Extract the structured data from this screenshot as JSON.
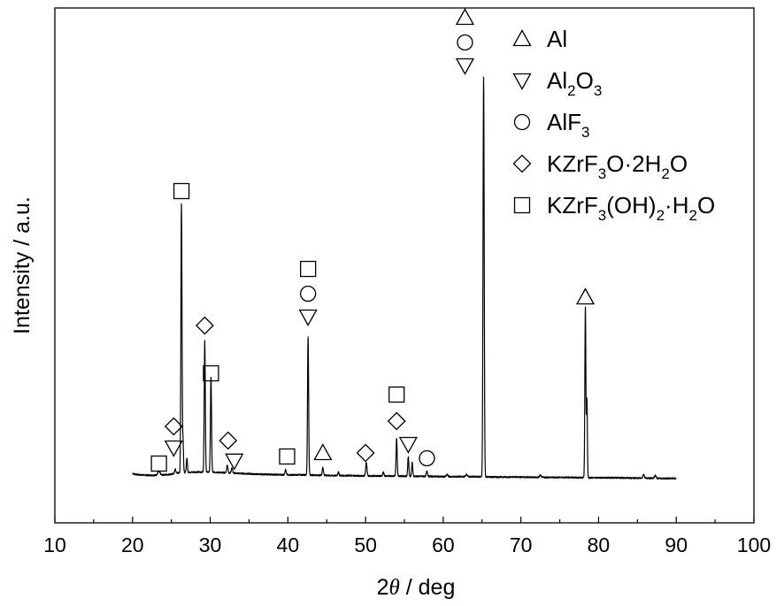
{
  "chart_data": {
    "type": "line",
    "xlabel": {
      "prefix": "2",
      "symbol": "θ",
      "suffix": " / deg"
    },
    "ylabel": "Intensity / a.u.",
    "xlim": [
      10,
      100
    ],
    "x_ticks": [
      10,
      20,
      30,
      40,
      50,
      60,
      70,
      80,
      90,
      100
    ],
    "x_minor_step": 5,
    "ylim": [
      0,
      1200
    ],
    "y_ticks_shown": false,
    "grid": false,
    "legend_position": "top-right",
    "legend": [
      {
        "shape": "triangle-up",
        "parts": [
          {
            "t": "Al"
          }
        ]
      },
      {
        "shape": "triangle-down",
        "parts": [
          {
            "t": "Al"
          },
          {
            "t": "2",
            "sub": true
          },
          {
            "t": "O"
          },
          {
            "t": "3",
            "sub": true
          }
        ]
      },
      {
        "shape": "circle",
        "parts": [
          {
            "t": "AlF"
          },
          {
            "t": "3",
            "sub": true
          }
        ]
      },
      {
        "shape": "diamond",
        "parts": [
          {
            "t": "KZrF"
          },
          {
            "t": "3",
            "sub": true
          },
          {
            "t": "O·2H"
          },
          {
            "t": "2",
            "sub": true
          },
          {
            "t": "O"
          }
        ]
      },
      {
        "shape": "square",
        "parts": [
          {
            "t": "KZrF"
          },
          {
            "t": "3",
            "sub": true
          },
          {
            "t": "(OH)"
          },
          {
            "t": "2",
            "sub": true
          },
          {
            "t": "·H"
          },
          {
            "t": "2",
            "sub": true
          },
          {
            "t": "O"
          }
        ]
      }
    ],
    "baseline": [
      [
        20,
        32
      ],
      [
        20.5,
        29
      ],
      [
        21,
        28
      ],
      [
        22,
        27
      ],
      [
        23,
        27
      ],
      [
        24,
        28
      ],
      [
        25,
        30
      ],
      [
        26,
        34
      ],
      [
        28,
        36
      ],
      [
        30,
        36
      ],
      [
        32,
        34
      ],
      [
        34,
        32
      ],
      [
        36,
        30
      ],
      [
        38,
        29
      ],
      [
        40,
        28
      ],
      [
        42,
        28
      ],
      [
        44,
        27
      ],
      [
        46,
        26
      ],
      [
        48,
        26
      ],
      [
        50,
        25
      ],
      [
        52,
        25
      ],
      [
        54,
        25
      ],
      [
        56,
        24
      ],
      [
        58,
        24
      ],
      [
        60,
        23
      ],
      [
        62,
        23
      ],
      [
        64,
        23
      ],
      [
        66,
        22
      ],
      [
        68,
        22
      ],
      [
        70,
        22
      ],
      [
        72,
        21
      ],
      [
        74,
        21
      ],
      [
        76,
        21
      ],
      [
        78,
        20
      ],
      [
        80,
        20
      ],
      [
        82,
        20
      ],
      [
        84,
        19
      ],
      [
        86,
        19
      ],
      [
        88,
        18
      ],
      [
        90,
        18
      ]
    ],
    "peaks": [
      {
        "x": 23.4,
        "h": 10,
        "w": 0.15
      },
      {
        "x": 25.5,
        "h": 12,
        "w": 0.08
      },
      {
        "x": 26.3,
        "h": 760,
        "w": 0.07
      },
      {
        "x": 26.5,
        "h": 90,
        "w": 0.06
      },
      {
        "x": 27.0,
        "h": 40,
        "w": 0.07
      },
      {
        "x": 29.3,
        "h": 370,
        "w": 0.07
      },
      {
        "x": 30.1,
        "h": 270,
        "w": 0.07
      },
      {
        "x": 32.2,
        "h": 22,
        "w": 0.08
      },
      {
        "x": 32.8,
        "h": 15,
        "w": 0.08
      },
      {
        "x": 39.7,
        "h": 15,
        "w": 0.08
      },
      {
        "x": 42.6,
        "h": 390,
        "w": 0.07
      },
      {
        "x": 44.5,
        "h": 22,
        "w": 0.08
      },
      {
        "x": 46.5,
        "h": 10,
        "w": 0.08
      },
      {
        "x": 50.1,
        "h": 38,
        "w": 0.08
      },
      {
        "x": 52.3,
        "h": 10,
        "w": 0.08
      },
      {
        "x": 54.0,
        "h": 105,
        "w": 0.07
      },
      {
        "x": 55.5,
        "h": 55,
        "w": 0.07
      },
      {
        "x": 56.0,
        "h": 38,
        "w": 0.07
      },
      {
        "x": 57.9,
        "h": 15,
        "w": 0.08
      },
      {
        "x": 60.5,
        "h": 6,
        "w": 0.1
      },
      {
        "x": 63.0,
        "h": 6,
        "w": 0.1
      },
      {
        "x": 65.2,
        "h": 1130,
        "w": 0.075
      },
      {
        "x": 72.5,
        "h": 6,
        "w": 0.1
      },
      {
        "x": 78.3,
        "h": 480,
        "w": 0.065
      },
      {
        "x": 78.5,
        "h": 220,
        "w": 0.06
      },
      {
        "x": 85.8,
        "h": 10,
        "w": 0.1
      },
      {
        "x": 87.3,
        "h": 8,
        "w": 0.1
      }
    ],
    "annotations": [
      {
        "x": 23.4,
        "y": 60,
        "shape": "square"
      },
      {
        "x": 25.3,
        "y": 105,
        "shape": "triangle-down"
      },
      {
        "x": 25.3,
        "y": 165,
        "shape": "diamond"
      },
      {
        "x": 26.3,
        "y": 830,
        "shape": "square"
      },
      {
        "x": 29.3,
        "y": 450,
        "shape": "diamond"
      },
      {
        "x": 30.1,
        "y": 315,
        "shape": "square"
      },
      {
        "x": 32.3,
        "y": 125,
        "shape": "diamond"
      },
      {
        "x": 33.1,
        "y": 68,
        "shape": "triangle-down"
      },
      {
        "x": 39.9,
        "y": 80,
        "shape": "square"
      },
      {
        "x": 42.6,
        "y": 475,
        "shape": "triangle-down"
      },
      {
        "x": 42.6,
        "y": 540,
        "shape": "circle"
      },
      {
        "x": 42.6,
        "y": 610,
        "shape": "square"
      },
      {
        "x": 44.5,
        "y": 90,
        "shape": "triangle-up"
      },
      {
        "x": 50.0,
        "y": 90,
        "shape": "diamond"
      },
      {
        "x": 54.0,
        "y": 180,
        "shape": "diamond"
      },
      {
        "x": 54.0,
        "y": 255,
        "shape": "square"
      },
      {
        "x": 55.5,
        "y": 115,
        "shape": "triangle-down"
      },
      {
        "x": 57.9,
        "y": 75,
        "shape": "circle"
      },
      {
        "x": 62.8,
        "y": 1185,
        "shape": "triangle-down"
      },
      {
        "x": 62.8,
        "y": 1250,
        "shape": "circle"
      },
      {
        "x": 62.8,
        "y": 1320,
        "shape": "triangle-up"
      },
      {
        "x": 78.3,
        "y": 530,
        "shape": "triangle-up"
      }
    ]
  }
}
